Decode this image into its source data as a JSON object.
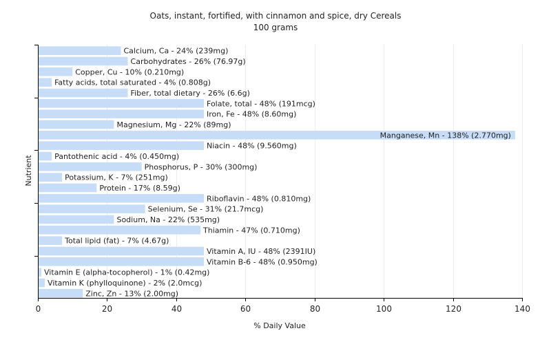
{
  "chart_data": {
    "type": "bar",
    "orientation": "horizontal",
    "title": "Oats, instant, fortified, with cinnamon and spice, dry Cereals",
    "subtitle": "100 grams",
    "xlabel": "% Daily Value",
    "ylabel": "Nutrient",
    "xlim": [
      0,
      140
    ],
    "xticks": [
      0,
      20,
      40,
      60,
      80,
      100,
      120,
      140
    ],
    "grid": true,
    "bar_color": "#c6dcf7",
    "categories": [
      "Calcium, Ca - 24% (239mg)",
      "Carbohydrates - 26% (76.97g)",
      "Copper, Cu - 10% (0.210mg)",
      "Fatty acids, total saturated - 4% (0.808g)",
      "Fiber, total dietary - 26% (6.6g)",
      "Folate, total - 48% (191mcg)",
      "Iron, Fe - 48% (8.60mg)",
      "Magnesium, Mg - 22% (89mg)",
      "Manganese, Mn - 138% (2.770mg)",
      "Niacin - 48% (9.560mg)",
      "Pantothenic acid - 4% (0.450mg)",
      "Phosphorus, P - 30% (300mg)",
      "Potassium, K - 7% (251mg)",
      "Protein - 17% (8.59g)",
      "Riboflavin - 48% (0.810mg)",
      "Selenium, Se - 31% (21.7mcg)",
      "Sodium, Na - 22% (535mg)",
      "Thiamin - 47% (0.710mg)",
      "Total lipid (fat) - 7% (4.67g)",
      "Vitamin A, IU - 48% (2391IU)",
      "Vitamin B-6 - 48% (0.950mg)",
      "Vitamin E (alpha-tocopherol) - 1% (0.42mg)",
      "Vitamin K (phylloquinone) - 2% (2.0mcg)",
      "Zinc, Zn - 13% (2.00mg)"
    ],
    "values": [
      24,
      26,
      10,
      4,
      26,
      48,
      48,
      22,
      138,
      48,
      4,
      30,
      7,
      17,
      48,
      31,
      22,
      47,
      7,
      48,
      48,
      1,
      2,
      13
    ]
  }
}
